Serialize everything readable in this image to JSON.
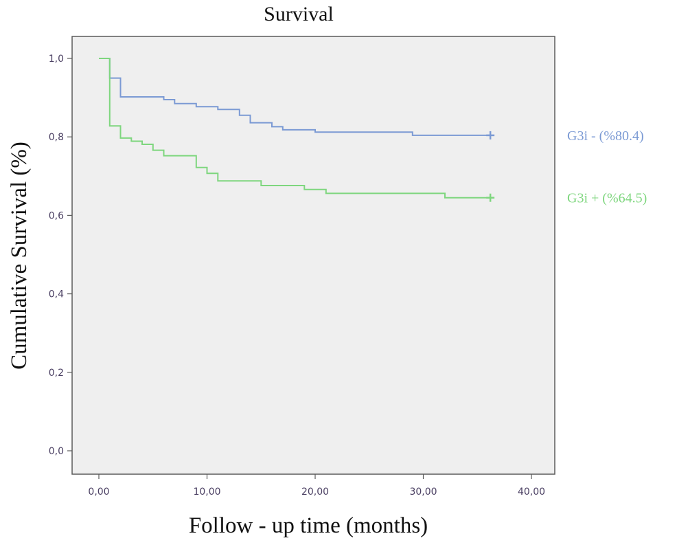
{
  "chart_data": {
    "type": "line",
    "title": "Survival",
    "xlabel": "Follow - up time (months)",
    "ylabel": "Cumulative Survival (%)",
    "xlim": [
      0,
      40
    ],
    "ylim": [
      0,
      1
    ],
    "xticks": [
      "0,00",
      "10,00",
      "20,00",
      "30,00",
      "40,00"
    ],
    "yticks": [
      "0,0",
      "0,2",
      "0,4",
      "0,6",
      "0,8",
      "1,0"
    ],
    "grid": false,
    "background": "#efefef",
    "legend_position": "right",
    "series": [
      {
        "name": "G3i -  (%80.4)",
        "color": "#7b9ad4",
        "censor_x": 36.2,
        "censor_y": 0.804,
        "x": [
          0,
          1,
          1,
          2,
          2,
          6,
          6,
          7,
          7,
          9,
          9,
          11,
          11,
          13,
          13,
          14,
          14,
          16,
          16,
          17,
          17,
          20,
          20,
          29,
          29,
          36.2
        ],
        "y": [
          1.0,
          1.0,
          0.95,
          0.95,
          0.902,
          0.902,
          0.895,
          0.895,
          0.885,
          0.885,
          0.877,
          0.877,
          0.87,
          0.87,
          0.855,
          0.855,
          0.836,
          0.836,
          0.826,
          0.826,
          0.818,
          0.818,
          0.812,
          0.812,
          0.804,
          0.804
        ]
      },
      {
        "name": "G3i +  (%64.5)",
        "color": "#7ed67e",
        "censor_x": 36.2,
        "censor_y": 0.645,
        "x": [
          0,
          1,
          1,
          2,
          2,
          3,
          3,
          4,
          4,
          5,
          5,
          6,
          6,
          9,
          9,
          10,
          10,
          11,
          11,
          15,
          15,
          19,
          19,
          21,
          21,
          32,
          32,
          36.2
        ],
        "y": [
          1.0,
          1.0,
          0.828,
          0.828,
          0.797,
          0.797,
          0.789,
          0.789,
          0.781,
          0.781,
          0.766,
          0.766,
          0.752,
          0.752,
          0.722,
          0.722,
          0.707,
          0.707,
          0.688,
          0.688,
          0.676,
          0.676,
          0.666,
          0.666,
          0.656,
          0.656,
          0.645,
          0.645
        ]
      }
    ]
  }
}
